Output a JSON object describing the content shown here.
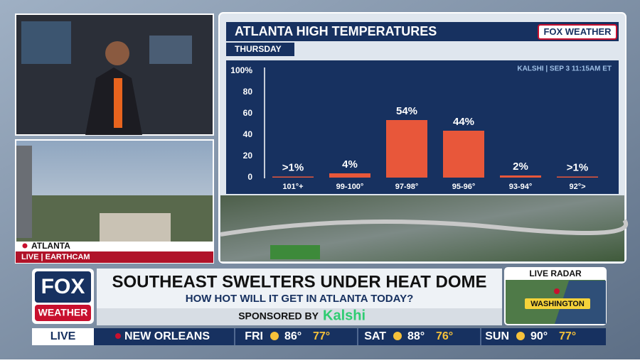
{
  "chart_data": {
    "type": "bar",
    "title": "ATLANTA HIGH TEMPERATURES",
    "subtitle": "THURSDAY",
    "annotation": "KALSHI | SEP 3 11:15AM ET",
    "logo": "FOX WEATHER",
    "categories": [
      "101°+",
      "99-100°",
      "97-98°",
      "95-96°",
      "93-94°",
      "92°>"
    ],
    "values": [
      1,
      4,
      54,
      44,
      2,
      1
    ],
    "value_labels": [
      ">1%",
      "4%",
      "54%",
      "44%",
      "2%",
      ">1%"
    ],
    "color": "#e8573a",
    "ylim": [
      0,
      100
    ],
    "yticks": [
      0,
      20,
      40,
      60,
      80,
      {
        "value": 100,
        "label": "100%"
      }
    ]
  },
  "camera": {
    "location": "ATLANTA",
    "source": "LIVE | EARTHCAM"
  },
  "lower_third": {
    "logo_top": "FOX",
    "logo_bottom": "WEATHER",
    "headline": "SOUTHEAST SWELTERS UNDER HEAT DOME",
    "subhead": "HOW HOT WILL IT GET IN ATLANTA TODAY?",
    "sponsor_prefix": "SPONSORED BY",
    "sponsor": "Kalshi",
    "radar_title": "LIVE RADAR",
    "radar_city": "WASHINGTON"
  },
  "ticker": {
    "live": "LIVE",
    "city": "NEW ORLEANS",
    "days": [
      {
        "day": "FRI",
        "high": "86°",
        "low": "77°"
      },
      {
        "day": "SAT",
        "high": "88°",
        "low": "76°"
      },
      {
        "day": "SUN",
        "high": "90°",
        "low": "77°"
      }
    ]
  }
}
